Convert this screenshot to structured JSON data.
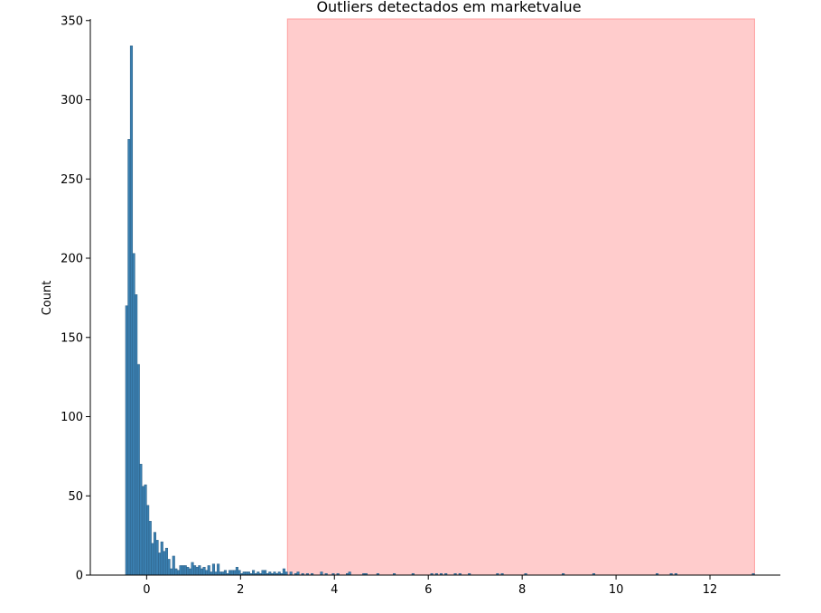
{
  "chart_data": {
    "type": "bar",
    "title": "Outliers detectados em marketvalue",
    "xlabel": "",
    "ylabel": "Count",
    "xlim": [
      -1.2,
      13.5
    ],
    "ylim": [
      0,
      351
    ],
    "xticks": [
      0,
      2,
      4,
      6,
      8,
      10,
      12
    ],
    "yticks": [
      0,
      50,
      100,
      150,
      200,
      250,
      300,
      350
    ],
    "grid": false,
    "bar_color": "#3a7fb0",
    "bar_edge_color": "#2d5f85",
    "outlier_region": {
      "x_start": 3.0,
      "x_end": 12.95,
      "color": "#ff9999",
      "opacity": 0.5
    },
    "bin_width": 0.05,
    "bins": [
      [
        -0.45,
        170
      ],
      [
        -0.4,
        275
      ],
      [
        -0.35,
        334
      ],
      [
        -0.3,
        203
      ],
      [
        -0.25,
        177
      ],
      [
        -0.2,
        133
      ],
      [
        -0.15,
        70
      ],
      [
        -0.1,
        56
      ],
      [
        -0.05,
        57
      ],
      [
        0.0,
        44
      ],
      [
        0.05,
        34
      ],
      [
        0.1,
        20
      ],
      [
        0.15,
        27
      ],
      [
        0.2,
        22
      ],
      [
        0.25,
        14
      ],
      [
        0.3,
        21
      ],
      [
        0.35,
        15
      ],
      [
        0.4,
        17
      ],
      [
        0.45,
        10
      ],
      [
        0.5,
        4
      ],
      [
        0.55,
        12
      ],
      [
        0.6,
        4
      ],
      [
        0.65,
        3
      ],
      [
        0.7,
        6
      ],
      [
        0.75,
        6
      ],
      [
        0.8,
        6
      ],
      [
        0.85,
        5
      ],
      [
        0.9,
        4
      ],
      [
        0.95,
        8
      ],
      [
        1.0,
        6
      ],
      [
        1.05,
        5
      ],
      [
        1.1,
        6
      ],
      [
        1.15,
        4
      ],
      [
        1.2,
        5
      ],
      [
        1.25,
        3
      ],
      [
        1.3,
        6
      ],
      [
        1.35,
        2
      ],
      [
        1.4,
        7
      ],
      [
        1.45,
        2
      ],
      [
        1.5,
        7
      ],
      [
        1.55,
        2
      ],
      [
        1.6,
        2
      ],
      [
        1.65,
        3
      ],
      [
        1.7,
        1
      ],
      [
        1.75,
        3
      ],
      [
        1.8,
        3
      ],
      [
        1.85,
        3
      ],
      [
        1.9,
        5
      ],
      [
        1.95,
        3
      ],
      [
        2.0,
        1
      ],
      [
        2.05,
        2
      ],
      [
        2.1,
        2
      ],
      [
        2.15,
        2
      ],
      [
        2.2,
        1
      ],
      [
        2.25,
        3
      ],
      [
        2.3,
        1
      ],
      [
        2.35,
        2
      ],
      [
        2.4,
        1
      ],
      [
        2.45,
        3
      ],
      [
        2.5,
        3
      ],
      [
        2.55,
        1
      ],
      [
        2.6,
        2
      ],
      [
        2.65,
        1
      ],
      [
        2.7,
        2
      ],
      [
        2.75,
        1
      ],
      [
        2.8,
        2
      ],
      [
        2.85,
        1
      ],
      [
        2.9,
        4
      ],
      [
        2.95,
        2
      ],
      [
        3.05,
        2
      ],
      [
        3.15,
        1
      ],
      [
        3.2,
        2
      ],
      [
        3.3,
        1
      ],
      [
        3.4,
        1
      ],
      [
        3.5,
        1
      ],
      [
        3.7,
        2
      ],
      [
        3.8,
        1
      ],
      [
        3.95,
        1
      ],
      [
        4.05,
        1
      ],
      [
        4.25,
        1
      ],
      [
        4.3,
        2
      ],
      [
        4.6,
        1
      ],
      [
        4.65,
        1
      ],
      [
        4.9,
        1
      ],
      [
        5.25,
        1
      ],
      [
        5.65,
        1
      ],
      [
        6.05,
        1
      ],
      [
        6.15,
        1
      ],
      [
        6.25,
        1
      ],
      [
        6.35,
        1
      ],
      [
        6.55,
        1
      ],
      [
        6.65,
        1
      ],
      [
        6.85,
        1
      ],
      [
        7.45,
        1
      ],
      [
        7.55,
        1
      ],
      [
        8.05,
        1
      ],
      [
        8.85,
        1
      ],
      [
        9.5,
        1
      ],
      [
        10.85,
        1
      ],
      [
        11.15,
        1
      ],
      [
        11.25,
        1
      ],
      [
        12.9,
        1
      ]
    ]
  }
}
